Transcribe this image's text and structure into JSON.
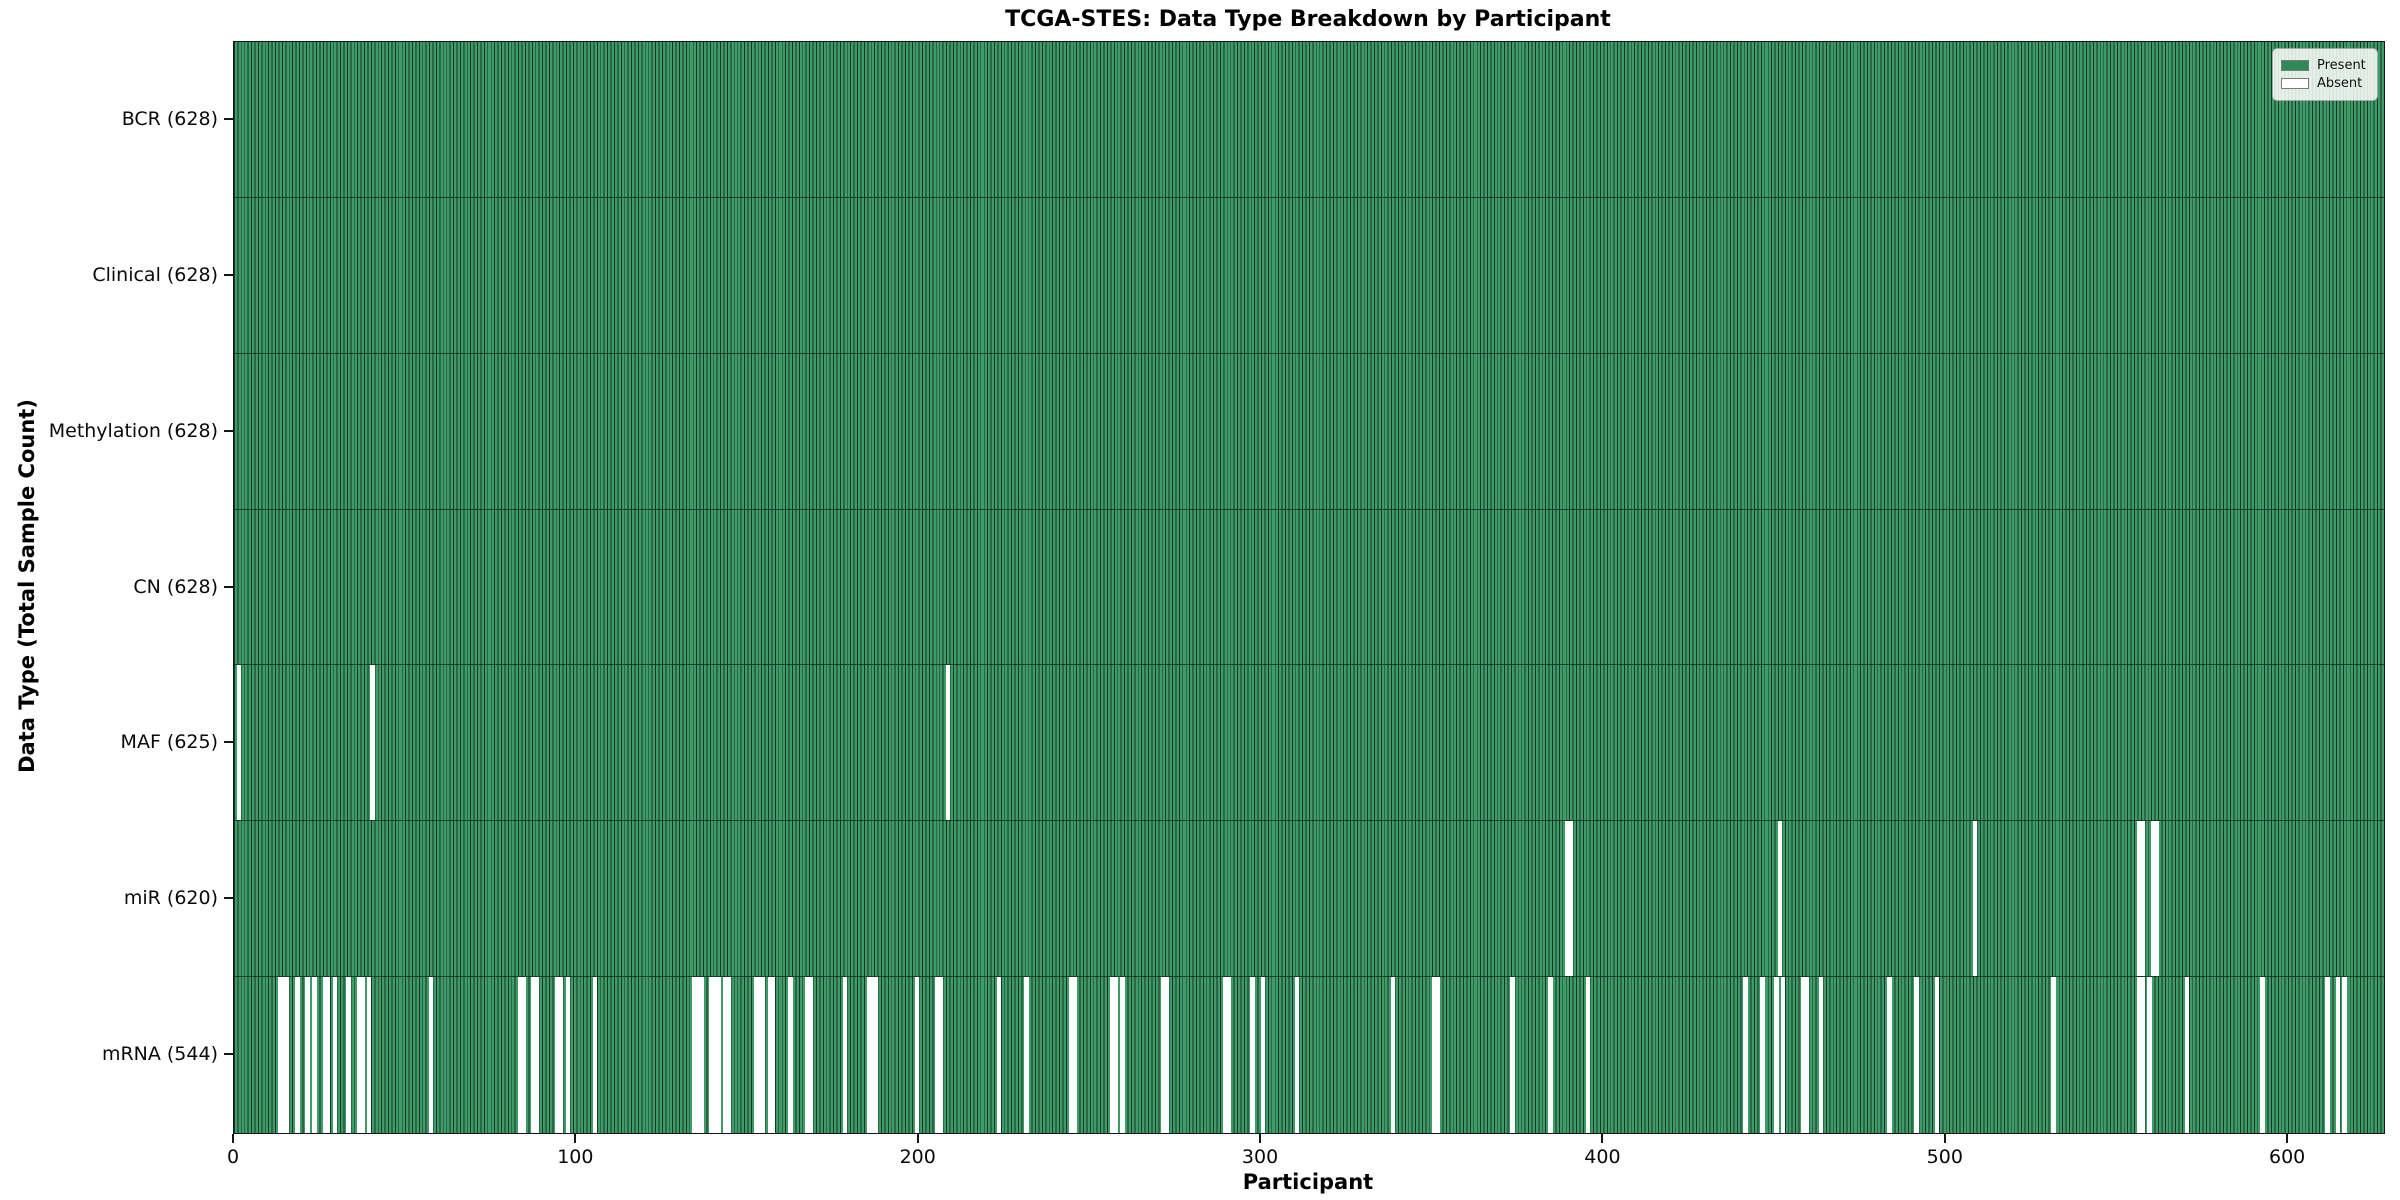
{
  "chart_data": {
    "type": "heatmap",
    "title": "TCGA-STES: Data Type Breakdown by Participant",
    "xlabel": "Participant",
    "ylabel": "Data Type (Total Sample Count)",
    "x_ticks": [
      0,
      100,
      200,
      300,
      400,
      500,
      600
    ],
    "x_range": [
      0,
      628
    ],
    "n_participants": 628,
    "grid": false,
    "legend_position": "upper right",
    "colors": {
      "present": "#2e8b57",
      "present_light": "#3f9b68",
      "cell_edge": "#123622",
      "absent": "#ffffff",
      "axis": "#151515"
    },
    "legend": [
      {
        "label": "Present",
        "color": "#2e8b57"
      },
      {
        "label": "Absent",
        "color": "#ffffff"
      }
    ],
    "rows": [
      {
        "name": "BCR",
        "label": "BCR (628)",
        "total": 628,
        "present": 628,
        "absent": []
      },
      {
        "name": "Clinical",
        "label": "Clinical (628)",
        "total": 628,
        "present": 628,
        "absent": []
      },
      {
        "name": "Methylation",
        "label": "Methylation (628)",
        "total": 628,
        "present": 628,
        "absent": []
      },
      {
        "name": "CN",
        "label": "CN (628)",
        "total": 628,
        "present": 628,
        "absent": []
      },
      {
        "name": "MAF",
        "label": "MAF (625)",
        "total": 628,
        "present": 625,
        "absent": [
          1,
          40,
          208
        ]
      },
      {
        "name": "miR",
        "label": "miR (620)",
        "total": 628,
        "present": 620,
        "absent": [
          389,
          390,
          451,
          508,
          556,
          557,
          560,
          561
        ]
      },
      {
        "name": "mRNA",
        "label": "mRNA (544)",
        "total": 628,
        "present": 544,
        "absent": [
          13,
          14,
          15,
          18,
          21,
          23,
          26,
          27,
          29,
          33,
          36,
          37,
          39,
          57,
          83,
          84,
          87,
          88,
          94,
          95,
          97,
          105,
          134,
          135,
          136,
          139,
          140,
          141,
          143,
          144,
          152,
          153,
          154,
          156,
          157,
          162,
          167,
          168,
          178,
          185,
          186,
          187,
          199,
          205,
          206,
          223,
          231,
          244,
          245,
          256,
          257,
          259,
          271,
          272,
          289,
          290,
          297,
          300,
          310,
          338,
          350,
          351,
          373,
          384,
          395,
          441,
          446,
          450,
          452,
          458,
          459,
          463,
          483,
          491,
          497,
          531,
          556,
          557,
          559,
          570,
          592,
          611,
          614,
          616
        ]
      }
    ]
  }
}
